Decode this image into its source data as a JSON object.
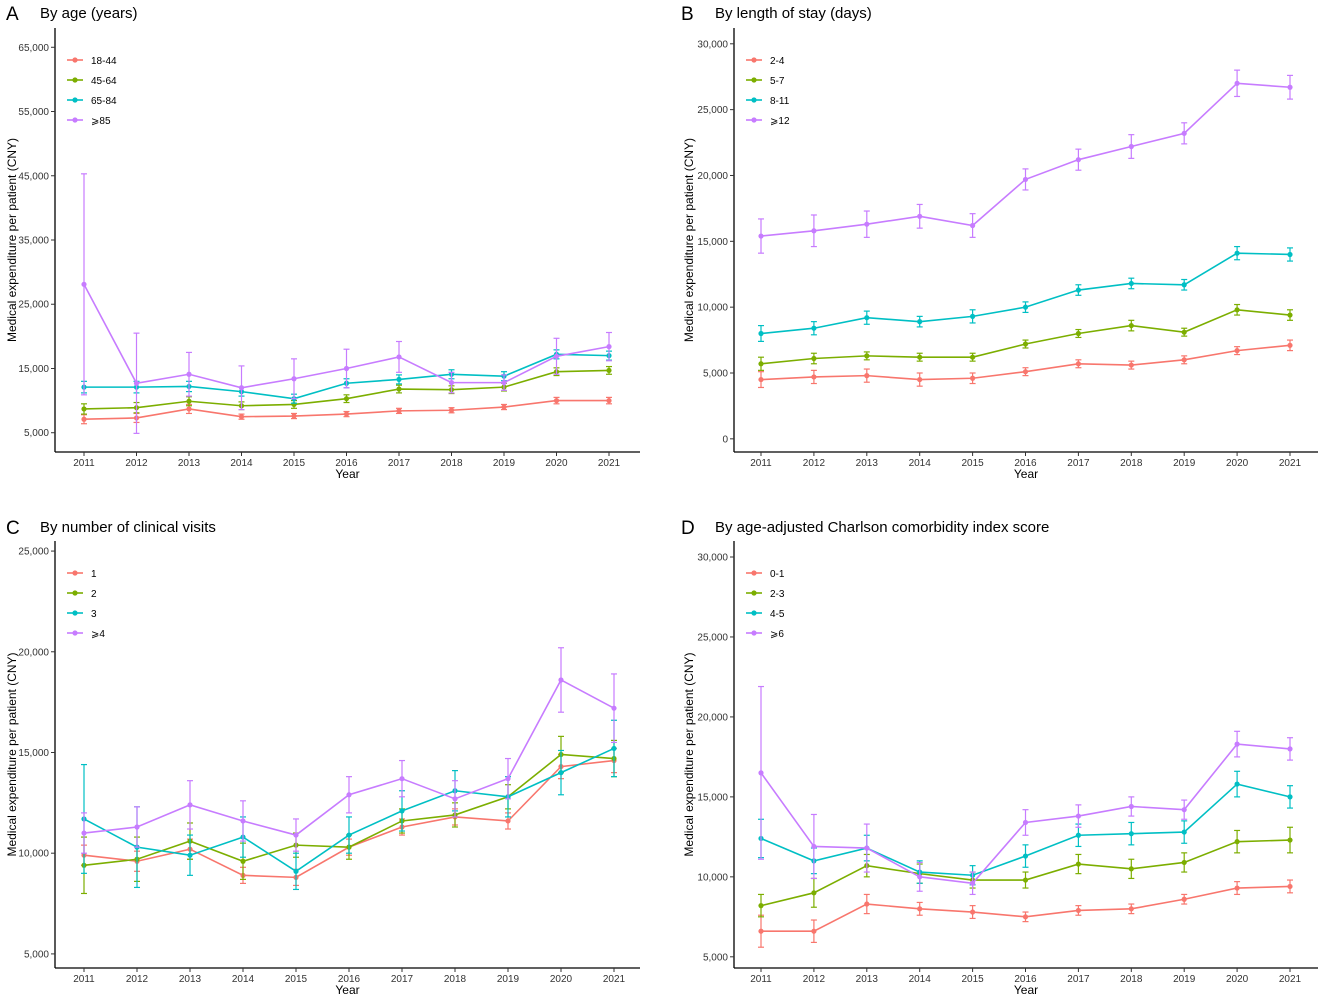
{
  "chart_data": [
    {
      "type": "line",
      "panel_letter": "A",
      "title": "By age (years)",
      "xlabel": "Year",
      "ylabel": "Medical expenditure per patient (CNY)",
      "x": [
        "2011",
        "2012",
        "2013",
        "2014",
        "2015",
        "2016",
        "2017",
        "2018",
        "2019",
        "2020",
        "2021"
      ],
      "yticks": [
        5000,
        15000,
        25000,
        35000,
        45000,
        55000,
        65000
      ],
      "ytick_labels": [
        "5,000",
        "15,000",
        "25,000",
        "35,000",
        "45,000",
        "55,000",
        "65,000"
      ],
      "ylim": [
        2000,
        68000
      ],
      "legend_position": "top-left",
      "series": [
        {
          "name": "18-44",
          "color": "#F8766D",
          "values": [
            7100,
            7300,
            8700,
            7500,
            7600,
            7900,
            8400,
            8500,
            9000,
            10000,
            10000
          ],
          "err": [
            700,
            700,
            700,
            400,
            400,
            400,
            400,
            400,
            400,
            500,
            500
          ]
        },
        {
          "name": "45-64",
          "color": "#7CAE00",
          "values": [
            8700,
            8900,
            9900,
            9200,
            9400,
            10300,
            11800,
            11700,
            12100,
            14500,
            14700
          ],
          "err": [
            800,
            800,
            700,
            600,
            600,
            600,
            600,
            600,
            600,
            600,
            600
          ]
        },
        {
          "name": "65-84",
          "color": "#00BFC4",
          "values": [
            12100,
            12100,
            12200,
            11400,
            10300,
            12700,
            13300,
            14100,
            13800,
            17200,
            17000
          ],
          "err": [
            900,
            900,
            800,
            700,
            700,
            700,
            700,
            700,
            700,
            700,
            700
          ]
        },
        {
          "name": "⩾85",
          "color": "#C77CFF",
          "values": [
            28100,
            12700,
            14100,
            12000,
            13400,
            15000,
            16800,
            12800,
            12800,
            16900,
            18400
          ],
          "err": [
            17200,
            7800,
            3400,
            3400,
            3100,
            3000,
            2400,
            1600,
            1200,
            2800,
            2200
          ]
        }
      ]
    },
    {
      "type": "line",
      "panel_letter": "B",
      "title": "By length of stay (days)",
      "xlabel": "Year",
      "ylabel": "Medical expenditure per patient (CNY)",
      "x": [
        "2011",
        "2012",
        "2013",
        "2014",
        "2015",
        "2016",
        "2017",
        "2018",
        "2019",
        "2020",
        "2021"
      ],
      "yticks": [
        0,
        5000,
        10000,
        15000,
        20000,
        25000,
        30000
      ],
      "ytick_labels": [
        "0",
        "5,000",
        "10,000",
        "15,000",
        "20,000",
        "25,000",
        "30,000"
      ],
      "ylim": [
        -1000,
        31200
      ],
      "legend_position": "top-left",
      "series": [
        {
          "name": "2-4",
          "color": "#F8766D",
          "values": [
            4500,
            4700,
            4800,
            4500,
            4600,
            5100,
            5700,
            5600,
            6000,
            6700,
            7100
          ],
          "err": [
            600,
            500,
            500,
            500,
            400,
            300,
            300,
            300,
            300,
            300,
            400
          ]
        },
        {
          "name": "5-7",
          "color": "#7CAE00",
          "values": [
            5700,
            6100,
            6300,
            6200,
            6200,
            7200,
            8000,
            8600,
            8100,
            9800,
            9400
          ],
          "err": [
            500,
            400,
            300,
            300,
            300,
            300,
            300,
            400,
            300,
            400,
            400
          ]
        },
        {
          "name": "8-11",
          "color": "#00BFC4",
          "values": [
            8000,
            8400,
            9200,
            8900,
            9300,
            10000,
            11300,
            11800,
            11700,
            14100,
            14000
          ],
          "err": [
            600,
            500,
            500,
            400,
            500,
            400,
            400,
            400,
            400,
            500,
            500
          ]
        },
        {
          "name": "⩾12",
          "color": "#C77CFF",
          "values": [
            15400,
            15800,
            16300,
            16900,
            16200,
            19700,
            21200,
            22200,
            23200,
            27000,
            26700
          ],
          "err": [
            1300,
            1200,
            1000,
            900,
            900,
            800,
            800,
            900,
            800,
            1000,
            900
          ]
        }
      ]
    },
    {
      "type": "line",
      "panel_letter": "C",
      "title": "By number of clinical visits",
      "xlabel": "Year",
      "ylabel": "Medical expenditure per patient (CNY)",
      "x": [
        "2011",
        "2012",
        "2013",
        "2014",
        "2015",
        "2016",
        "2017",
        "2018",
        "2019",
        "2020",
        "2021"
      ],
      "yticks": [
        5000,
        10000,
        15000,
        20000,
        25000
      ],
      "ytick_labels": [
        "5,000",
        "10,000",
        "15,000",
        "20,000",
        "25,000"
      ],
      "ylim": [
        4300,
        25500
      ],
      "legend_position": "top-left",
      "series": [
        {
          "name": "1",
          "color": "#F8766D",
          "values": [
            9900,
            9600,
            10200,
            8900,
            8800,
            10300,
            11300,
            11800,
            11600,
            14300,
            14600
          ],
          "err": [
            500,
            500,
            500,
            400,
            400,
            400,
            400,
            400,
            400,
            600,
            600
          ]
        },
        {
          "name": "2",
          "color": "#7CAE00",
          "values": [
            9400,
            9700,
            10600,
            9600,
            10400,
            10300,
            11600,
            11900,
            12800,
            14900,
            14700
          ],
          "err": [
            1400,
            1100,
            900,
            900,
            600,
            600,
            600,
            600,
            600,
            900,
            900
          ]
        },
        {
          "name": "3",
          "color": "#00BFC4",
          "values": [
            11700,
            10300,
            9900,
            10800,
            9100,
            10900,
            12100,
            13100,
            12800,
            14000,
            15200
          ],
          "err": [
            2700,
            2000,
            1000,
            1000,
            900,
            900,
            1000,
            1000,
            1000,
            1100,
            1400
          ]
        },
        {
          "name": "⩾4",
          "color": "#C77CFF",
          "values": [
            11000,
            11300,
            12400,
            11600,
            10900,
            12900,
            13700,
            12700,
            13700,
            18600,
            17200
          ],
          "err": [
            1000,
            1000,
            1200,
            1000,
            800,
            900,
            900,
            900,
            1000,
            1600,
            1700
          ]
        }
      ]
    },
    {
      "type": "line",
      "panel_letter": "D",
      "title": "By age-adjusted Charlson comorbidity index score",
      "xlabel": "Year",
      "ylabel": "Medical expenditure per patient (CNY)",
      "x": [
        "2011",
        "2012",
        "2013",
        "2014",
        "2015",
        "2016",
        "2017",
        "2018",
        "2019",
        "2020",
        "2021"
      ],
      "yticks": [
        5000,
        10000,
        15000,
        20000,
        25000,
        30000
      ],
      "ytick_labels": [
        "5,000",
        "10,000",
        "15,000",
        "20,000",
        "25,000",
        "30,000"
      ],
      "ylim": [
        4300,
        31000
      ],
      "legend_position": "top-left",
      "series": [
        {
          "name": "0-1",
          "color": "#F8766D",
          "values": [
            6600,
            6600,
            8300,
            8000,
            7800,
            7500,
            7900,
            8000,
            8600,
            9300,
            9400
          ],
          "err": [
            1000,
            700,
            600,
            400,
            400,
            300,
            300,
            300,
            300,
            400,
            400
          ]
        },
        {
          "name": "2-3",
          "color": "#7CAE00",
          "values": [
            8200,
            9000,
            10700,
            10200,
            9800,
            9800,
            10800,
            10500,
            10900,
            12200,
            12300
          ],
          "err": [
            700,
            900,
            700,
            600,
            500,
            500,
            600,
            600,
            600,
            700,
            800
          ]
        },
        {
          "name": "4-5",
          "color": "#00BFC4",
          "values": [
            12400,
            11000,
            11800,
            10300,
            10100,
            11300,
            12600,
            12700,
            12800,
            15800,
            15000
          ],
          "err": [
            1200,
            800,
            800,
            700,
            600,
            700,
            700,
            700,
            700,
            800,
            700
          ]
        },
        {
          "name": "⩾6",
          "color": "#C77CFF",
          "values": [
            16500,
            11900,
            11800,
            10000,
            9600,
            13400,
            13800,
            14400,
            14200,
            18300,
            18000
          ],
          "err": [
            5400,
            2000,
            1500,
            900,
            700,
            800,
            700,
            600,
            600,
            800,
            700
          ]
        }
      ]
    }
  ]
}
